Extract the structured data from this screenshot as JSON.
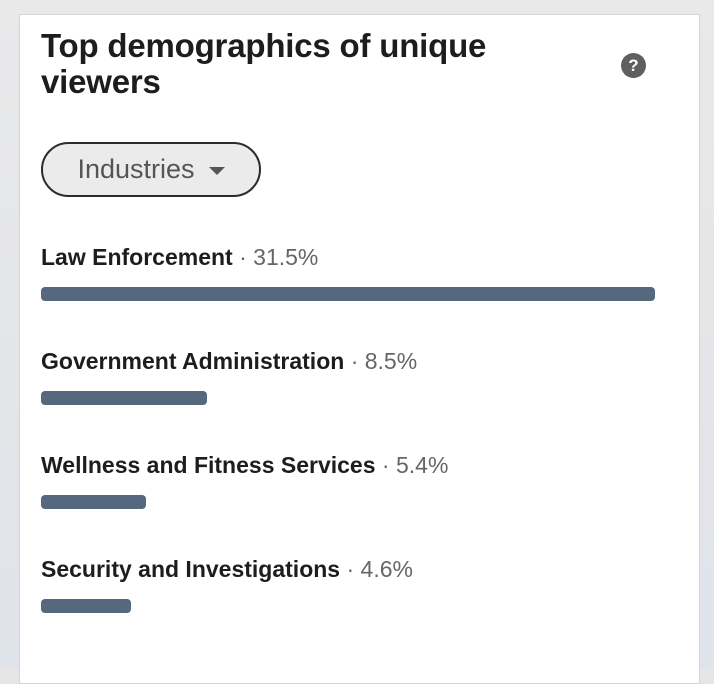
{
  "panel": {
    "title": "Top demographics of unique viewers",
    "help_icon": "question-circle-icon",
    "help_glyph": "?"
  },
  "filter": {
    "selected": "Industries",
    "caret_icon": "caret-down-icon"
  },
  "separator": "·",
  "bar_color": "#56687e",
  "industries": [
    {
      "label": "Law Enforcement",
      "percent": "31.5%",
      "value": 31.5
    },
    {
      "label": "Government Administration",
      "percent": "8.5%",
      "value": 8.5
    },
    {
      "label": "Wellness and Fitness Services",
      "percent": "5.4%",
      "value": 5.4
    },
    {
      "label": "Security and Investigations",
      "percent": "4.6%",
      "value": 4.6
    }
  ]
}
